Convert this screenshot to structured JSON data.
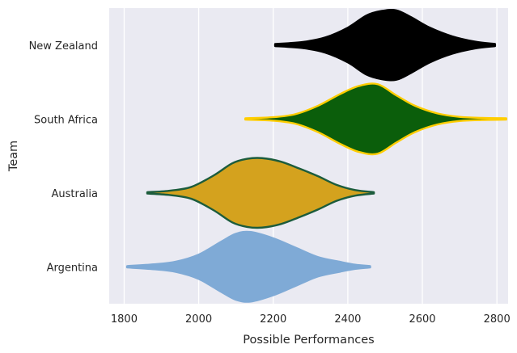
{
  "chart_data": {
    "type": "violin",
    "orientation": "horizontal",
    "xlabel": "Possible Performances",
    "ylabel": "Team",
    "xlim": [
      1760,
      2830
    ],
    "xticks": [
      1800,
      2000,
      2200,
      2400,
      2600,
      2800
    ],
    "grid": "vertical",
    "background": "#eaeaf2",
    "categories": [
      "New Zealand",
      "South Africa",
      "Australia",
      "Argentina"
    ],
    "series": [
      {
        "category": "New Zealand",
        "fill": "#000000",
        "edge": "#000000",
        "density": [
          [
            2205,
            0.03
          ],
          [
            2280,
            0.09
          ],
          [
            2340,
            0.22
          ],
          [
            2400,
            0.5
          ],
          [
            2450,
            0.85
          ],
          [
            2490,
            0.98
          ],
          [
            2530,
            1.0
          ],
          [
            2570,
            0.8
          ],
          [
            2620,
            0.5
          ],
          [
            2680,
            0.25
          ],
          [
            2740,
            0.1
          ],
          [
            2795,
            0.03
          ]
        ]
      },
      {
        "category": "South Africa",
        "fill": "#0b5e0b",
        "edge": "#ffcd00",
        "density": [
          [
            2125,
            0.02
          ],
          [
            2200,
            0.05
          ],
          [
            2260,
            0.14
          ],
          [
            2320,
            0.38
          ],
          [
            2380,
            0.72
          ],
          [
            2430,
            0.95
          ],
          [
            2480,
            1.0
          ],
          [
            2530,
            0.68
          ],
          [
            2580,
            0.38
          ],
          [
            2640,
            0.16
          ],
          [
            2700,
            0.06
          ],
          [
            2760,
            0.03
          ],
          [
            2825,
            0.02
          ]
        ]
      },
      {
        "category": "Australia",
        "fill": "#d4a21e",
        "edge": "#1c5c3c",
        "density": [
          [
            1862,
            0.02
          ],
          [
            1920,
            0.06
          ],
          [
            1980,
            0.17
          ],
          [
            2040,
            0.5
          ],
          [
            2090,
            0.85
          ],
          [
            2130,
            0.98
          ],
          [
            2170,
            1.0
          ],
          [
            2220,
            0.9
          ],
          [
            2270,
            0.7
          ],
          [
            2320,
            0.48
          ],
          [
            2370,
            0.23
          ],
          [
            2420,
            0.08
          ],
          [
            2470,
            0.02
          ]
        ]
      },
      {
        "category": "Argentina",
        "fill": "#7faad6",
        "edge": "#7faad6",
        "density": [
          [
            1808,
            0.02
          ],
          [
            1880,
            0.07
          ],
          [
            1940,
            0.15
          ],
          [
            2000,
            0.35
          ],
          [
            2060,
            0.72
          ],
          [
            2100,
            0.95
          ],
          [
            2140,
            1.0
          ],
          [
            2200,
            0.82
          ],
          [
            2260,
            0.55
          ],
          [
            2320,
            0.28
          ],
          [
            2380,
            0.14
          ],
          [
            2420,
            0.06
          ],
          [
            2460,
            0.02
          ]
        ]
      }
    ]
  }
}
